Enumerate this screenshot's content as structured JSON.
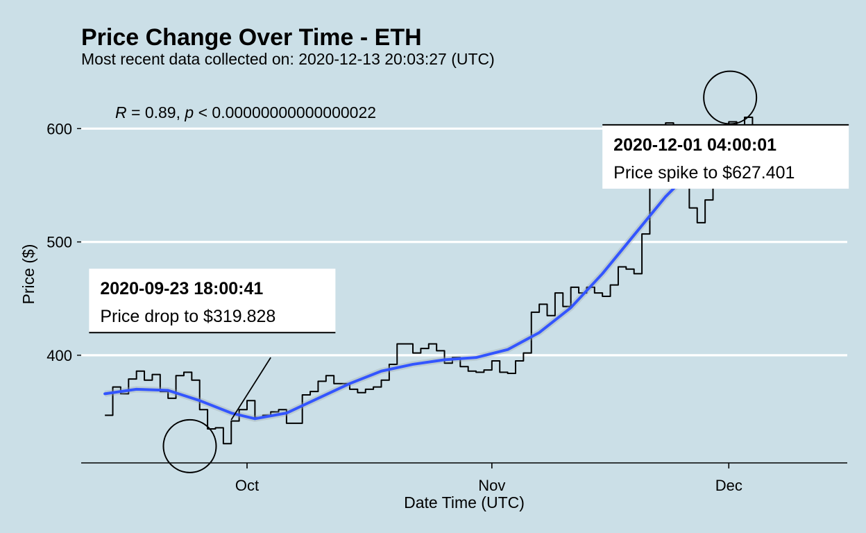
{
  "chart_data": {
    "type": "line",
    "title": "Price Change Over Time - ETH",
    "subtitle": "Most recent data collected on: 2020-12-13 20:03:27 (UTC)",
    "xlabel": "Date Time (UTC)",
    "ylabel": "Price ($)",
    "x_range": [
      "2020-09-13",
      "2020-12-13"
    ],
    "xlim": [
      "2020-09-10",
      "2020-12-16"
    ],
    "ylim": [
      305,
      640
    ],
    "x_ticks": [
      {
        "date": "2020-10-01",
        "label": "Oct"
      },
      {
        "date": "2020-11-01",
        "label": "Nov"
      },
      {
        "date": "2020-12-01",
        "label": "Dec"
      }
    ],
    "y_ticks": [
      400,
      500,
      600
    ],
    "grid": "horizontal",
    "legend": "none",
    "correlation_note": {
      "r_symbol": "R",
      "r_text": " = 0.89, ",
      "p_symbol": "p",
      "p_text": " < 0.00000000000000022"
    },
    "series": [
      {
        "kind": "price",
        "color": "#000000",
        "points": [
          [
            "2020-09-13",
            347
          ],
          [
            "2020-09-14",
            372
          ],
          [
            "2020-09-15",
            366
          ],
          [
            "2020-09-16",
            379
          ],
          [
            "2020-09-17",
            386
          ],
          [
            "2020-09-18",
            378
          ],
          [
            "2020-09-19",
            383
          ],
          [
            "2020-09-20",
            368
          ],
          [
            "2020-09-21",
            362
          ],
          [
            "2020-09-22",
            382
          ],
          [
            "2020-09-23",
            385
          ],
          [
            "2020-09-24",
            378
          ],
          [
            "2020-09-25",
            352
          ],
          [
            "2020-09-26",
            335
          ],
          [
            "2020-09-27",
            336
          ],
          [
            "2020-09-28",
            322
          ],
          [
            "2020-09-29",
            342
          ],
          [
            "2020-09-30",
            352
          ],
          [
            "2020-10-01",
            360
          ],
          [
            "2020-10-02",
            345
          ],
          [
            "2020-10-03",
            347
          ],
          [
            "2020-10-04",
            350
          ],
          [
            "2020-10-05",
            352
          ],
          [
            "2020-10-06",
            340
          ],
          [
            "2020-10-07",
            340
          ],
          [
            "2020-10-08",
            365
          ],
          [
            "2020-10-09",
            368
          ],
          [
            "2020-10-10",
            377
          ],
          [
            "2020-10-11",
            382
          ],
          [
            "2020-10-12",
            375
          ],
          [
            "2020-10-13",
            375
          ],
          [
            "2020-10-14",
            370
          ],
          [
            "2020-10-15",
            367
          ],
          [
            "2020-10-16",
            370
          ],
          [
            "2020-10-17",
            372
          ],
          [
            "2020-10-18",
            378
          ],
          [
            "2020-10-19",
            392
          ],
          [
            "2020-10-20",
            410
          ],
          [
            "2020-10-21",
            410
          ],
          [
            "2020-10-22",
            402
          ],
          [
            "2020-10-23",
            406
          ],
          [
            "2020-10-24",
            410
          ],
          [
            "2020-10-25",
            404
          ],
          [
            "2020-10-26",
            393
          ],
          [
            "2020-10-27",
            398
          ],
          [
            "2020-10-28",
            390
          ],
          [
            "2020-10-29",
            386
          ],
          [
            "2020-10-30",
            385
          ],
          [
            "2020-10-31",
            387
          ],
          [
            "2020-11-01",
            395
          ],
          [
            "2020-11-02",
            385
          ],
          [
            "2020-11-03",
            384
          ],
          [
            "2020-11-04",
            395
          ],
          [
            "2020-11-05",
            402
          ],
          [
            "2020-11-06",
            438
          ],
          [
            "2020-11-07",
            445
          ],
          [
            "2020-11-08",
            435
          ],
          [
            "2020-11-09",
            455
          ],
          [
            "2020-11-10",
            443
          ],
          [
            "2020-11-11",
            460
          ],
          [
            "2020-11-12",
            455
          ],
          [
            "2020-11-13",
            460
          ],
          [
            "2020-11-14",
            455
          ],
          [
            "2020-11-15",
            452
          ],
          [
            "2020-11-16",
            462
          ],
          [
            "2020-11-17",
            478
          ],
          [
            "2020-11-18",
            476
          ],
          [
            "2020-11-19",
            472
          ],
          [
            "2020-11-20",
            507
          ],
          [
            "2020-11-21",
            548
          ],
          [
            "2020-11-22",
            582
          ],
          [
            "2020-11-23",
            605
          ],
          [
            "2020-11-24",
            600
          ],
          [
            "2020-11-25",
            575
          ],
          [
            "2020-11-26",
            530
          ],
          [
            "2020-11-27",
            517
          ],
          [
            "2020-11-28",
            537
          ],
          [
            "2020-11-29",
            553
          ],
          [
            "2020-11-30",
            578
          ],
          [
            "2020-12-01",
            606
          ],
          [
            "2020-12-02",
            598
          ],
          [
            "2020-12-03",
            610
          ],
          [
            "2020-12-04",
            590
          ],
          [
            "2020-12-05",
            580
          ],
          [
            "2020-12-06",
            596
          ],
          [
            "2020-12-07",
            594
          ],
          [
            "2020-12-08",
            578
          ],
          [
            "2020-12-09",
            555
          ],
          [
            "2020-12-10",
            569
          ],
          [
            "2020-12-11",
            552
          ],
          [
            "2020-12-12",
            550
          ],
          [
            "2020-12-13",
            590
          ]
        ]
      },
      {
        "kind": "smooth",
        "color": "#3355ff",
        "points": [
          [
            "2020-09-13",
            366
          ],
          [
            "2020-09-17",
            370
          ],
          [
            "2020-09-21",
            369
          ],
          [
            "2020-09-25",
            360
          ],
          [
            "2020-09-29",
            349
          ],
          [
            "2020-10-02",
            344
          ],
          [
            "2020-10-06",
            349
          ],
          [
            "2020-10-10",
            362
          ],
          [
            "2020-10-14",
            375
          ],
          [
            "2020-10-18",
            386
          ],
          [
            "2020-10-22",
            392
          ],
          [
            "2020-10-26",
            396
          ],
          [
            "2020-10-30",
            398
          ],
          [
            "2020-11-03",
            405
          ],
          [
            "2020-11-07",
            420
          ],
          [
            "2020-11-11",
            442
          ],
          [
            "2020-11-15",
            472
          ],
          [
            "2020-11-19",
            506
          ],
          [
            "2020-11-23",
            540
          ],
          [
            "2020-11-27",
            568
          ],
          [
            "2020-12-01",
            582
          ],
          [
            "2020-12-04",
            587
          ],
          [
            "2020-12-07",
            584
          ],
          [
            "2020-12-10",
            570
          ],
          [
            "2020-12-13",
            555
          ]
        ]
      },
      {
        "kind": "trend",
        "color": "#000000",
        "points": [
          [
            "2020-12-05",
            590
          ],
          [
            "2020-12-13",
            548
          ]
        ]
      }
    ],
    "annotations": [
      {
        "title": "2020-09-23 18:00:41",
        "text": "Price drop to $319.828",
        "point": [
          "2020-09-23 18:00",
          319.8
        ],
        "label_at": [
          "2020-09-11",
          420
        ],
        "leader_from": [
          "2020-10-04",
          398
        ],
        "leader_to": [
          "2020-09-29",
          343
        ]
      },
      {
        "title": "2020-12-01 04:00:01",
        "text": "Price spike to $627.401",
        "point": [
          "2020-12-01 04:00",
          627.4
        ],
        "label_at": [
          "2020-11-15",
          547
        ],
        "leader_from": [
          "2020-12-09",
          548
        ],
        "leader_to": [
          "2020-12-04",
          590
        ]
      }
    ]
  }
}
